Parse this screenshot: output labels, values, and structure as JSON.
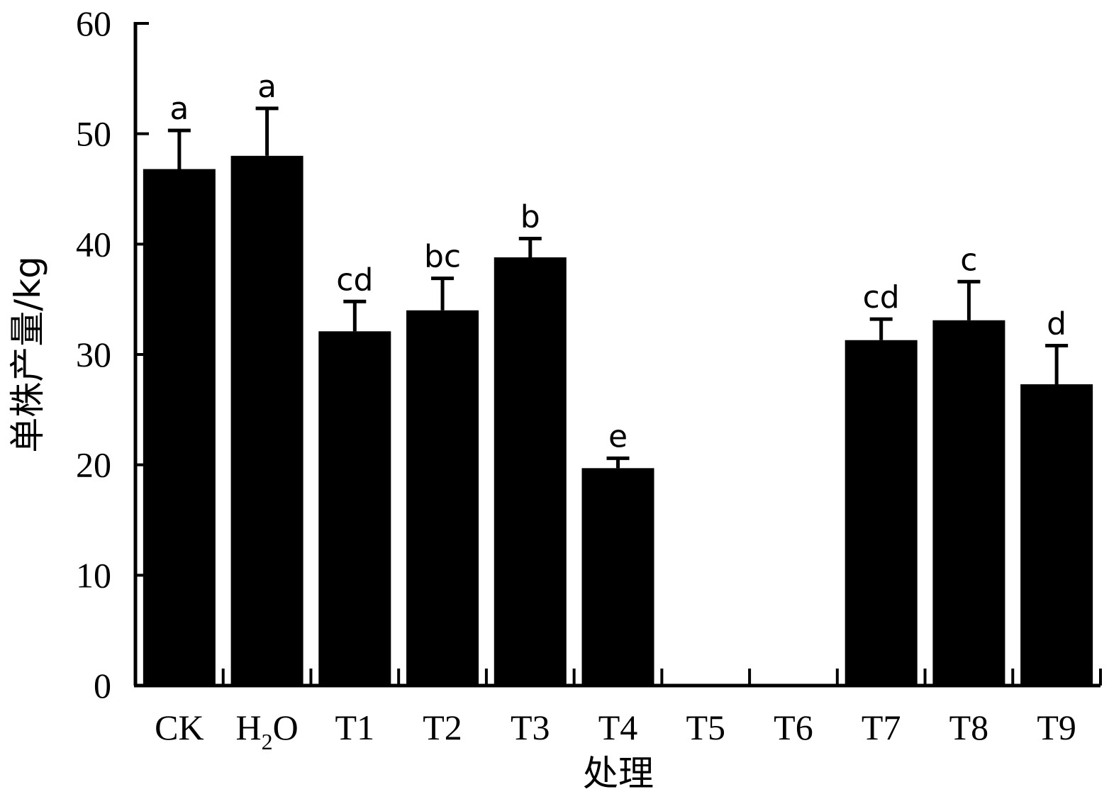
{
  "chart_data": {
    "type": "bar",
    "xlabel": "处理",
    "ylabel": "单株产量/kg",
    "ylim": [
      0,
      60
    ],
    "yticks": [
      "0",
      "10",
      "20",
      "30",
      "40",
      "50",
      "60"
    ],
    "categories": [
      "CK",
      "H2O",
      "T1",
      "T2",
      "T3",
      "T4",
      "T5",
      "T6",
      "T7",
      "T8",
      "T9"
    ],
    "values": [
      46.8,
      48.0,
      32.1,
      34.0,
      38.8,
      19.7,
      0,
      0,
      31.3,
      33.1,
      27.3
    ],
    "errors": [
      3.5,
      4.3,
      2.7,
      2.9,
      1.7,
      0.9,
      0,
      0,
      1.9,
      3.5,
      3.5
    ],
    "significance": [
      "a",
      "a",
      "cd",
      "bc",
      "b",
      "e",
      "",
      "",
      "cd",
      "c",
      "d"
    ],
    "bar_color": "#000000"
  }
}
